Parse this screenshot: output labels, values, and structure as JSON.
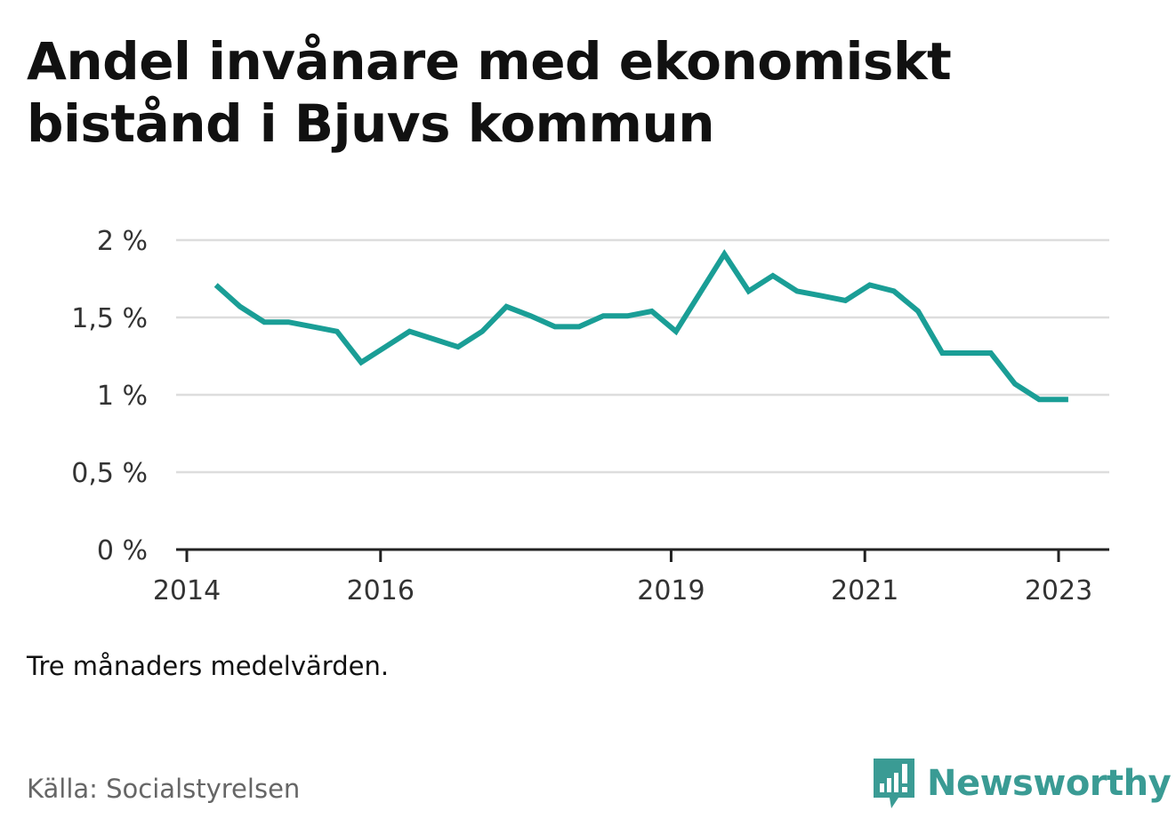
{
  "title": "Andel invånare med ekonomiskt bistånd i Bjuvs kommun",
  "note": "Tre månaders medelvärden.",
  "source": "Källa: Socialstyrelsen",
  "brand": {
    "name": "Newsworthy",
    "icon": "newsworthy-logo-icon",
    "color": "#3a9b94"
  },
  "chart_data": {
    "type": "line",
    "title": "Andel invånare med ekonomiskt bistånd i Bjuvs kommun",
    "xlabel": "",
    "ylabel": "",
    "ylim": [
      0,
      2
    ],
    "yticks": [
      0,
      0.5,
      1,
      1.5,
      2
    ],
    "ytick_labels": [
      "0 %",
      "0,5 %",
      "1 %",
      "1,5 %",
      "2 %"
    ],
    "xlim": [
      2014.0,
      2023.4
    ],
    "xticks": [
      2014,
      2016,
      2019,
      2021,
      2023
    ],
    "xtick_labels": [
      "2014",
      "2016",
      "2019",
      "2021",
      "2023"
    ],
    "grid": true,
    "line_color": "#1a9e96",
    "series": [
      {
        "x": [
          2014.3,
          2014.55,
          2014.8,
          2015.05,
          2015.3,
          2015.55,
          2015.8,
          2016.05,
          2016.3,
          2016.55,
          2016.8,
          2017.05,
          2017.3,
          2017.55,
          2017.8,
          2018.05,
          2018.3,
          2018.55,
          2018.8,
          2019.05,
          2019.3,
          2019.55,
          2019.8,
          2020.05,
          2020.3,
          2020.55,
          2020.8,
          2021.05,
          2021.3,
          2021.55,
          2021.8,
          2022.05,
          2022.3,
          2022.55,
          2022.8,
          2023.05,
          2023.1
        ],
        "values": [
          1.71,
          1.57,
          1.47,
          1.47,
          1.44,
          1.41,
          1.21,
          1.31,
          1.41,
          1.36,
          1.31,
          1.41,
          1.57,
          1.51,
          1.44,
          1.44,
          1.51,
          1.51,
          1.54,
          1.41,
          1.66,
          1.91,
          1.67,
          1.77,
          1.67,
          1.64,
          1.61,
          1.71,
          1.67,
          1.54,
          1.27,
          1.27,
          1.27,
          1.07,
          0.97,
          0.97,
          0.97
        ]
      }
    ]
  }
}
